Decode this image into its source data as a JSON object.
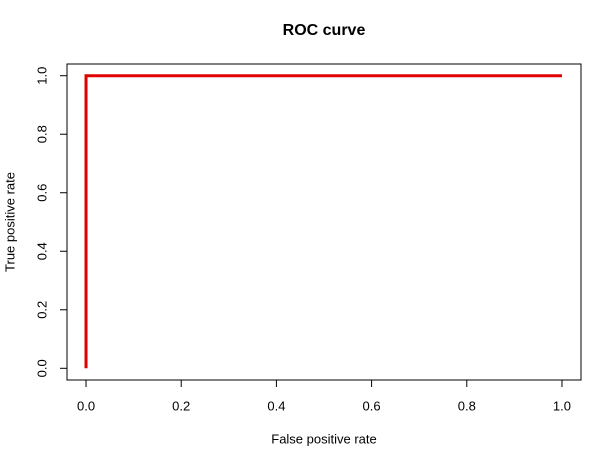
{
  "chart_data": {
    "type": "line",
    "title": "ROC curve",
    "x_label": "False positive rate",
    "y_label": "True positive rate",
    "x": [
      0,
      0,
      1
    ],
    "values": [
      0,
      1,
      1
    ],
    "color": "#e00000",
    "xlim": [
      -0.04,
      1.04
    ],
    "ylim": [
      -0.04,
      1.04
    ],
    "xticks": [
      {
        "value": 0,
        "label": "0.0"
      },
      0.2,
      0.4,
      0.6,
      0.8,
      {
        "value": 1,
        "label": "1.0"
      }
    ],
    "yticks": [
      {
        "value": 0,
        "label": "0.0"
      },
      0.2,
      0.4,
      0.6,
      0.8,
      {
        "value": 1,
        "label": "1.0"
      }
    ],
    "grid": false
  }
}
